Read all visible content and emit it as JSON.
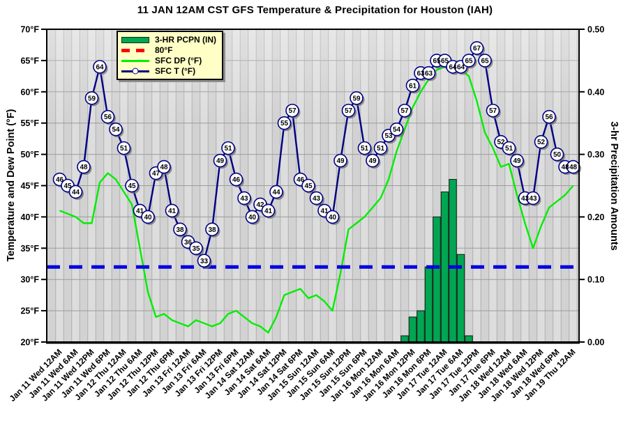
{
  "chart_data": {
    "type": "line",
    "subtype": "GFS meteogram: 3-hourly temperature/dew point lines plus precipitation bars",
    "title": "11 JAN 12AM CST GFS Temperature & Precipitation for Houston (IAH)",
    "ylabel_left": "Temperature and Dew Point (°F)",
    "ylabel_right": "3-hr Precipitation Amounts",
    "ylim_left_f": [
      20,
      70
    ],
    "ylim_right_in": [
      0.0,
      0.5
    ],
    "y_left_ticks": [
      "70°F",
      "65°F",
      "60°F",
      "55°F",
      "50°F",
      "45°F",
      "40°F",
      "35°F",
      "30°F",
      "25°F",
      "20°F"
    ],
    "y_right_ticks": [
      "0.50",
      "0.40",
      "0.30",
      "0.20",
      "0.10",
      "0.00"
    ],
    "x_interval_hours": 3,
    "x_tick_labels": [
      "Jan 11 Wed 12AM",
      "Jan 11 Wed 6AM",
      "Jan 11 Wed 12PM",
      "Jan 11 Wed 6PM",
      "Jan 12 Thu 12AM",
      "Jan 12 Thu 6AM",
      "Jan 12 Thu 12PM",
      "Jan 12 Thu 6PM",
      "Jan 13 Fri 12AM",
      "Jan 13 Fri 6AM",
      "Jan 13 Fri 12PM",
      "Jan 13 Fri 6PM",
      "Jan 14 Sat 12AM",
      "Jan 14 Sat 6AM",
      "Jan 14 Sat 12PM",
      "Jan 14 Sat 6PM",
      "Jan 15 Sun 12AM",
      "Jan 15 Sun 6AM",
      "Jan 15 Sun 12PM",
      "Jan 15 Sun 6PM",
      "Jan 16 Mon 12AM",
      "Jan 16 Mon 6AM",
      "Jan 16 Mon 12PM",
      "Jan 16 Mon 6PM",
      "Jan 17 Tue 12AM",
      "Jan 17 Tue 6AM",
      "Jan 17 Tue 12PM",
      "Jan 17 Tue 6PM",
      "Jan 18 Wed 12AM",
      "Jan 18 Wed 6AM",
      "Jan 18 Wed 12PM",
      "Jan 18 Wed 6PM",
      "Jan 19 Thu 12AM"
    ],
    "freezing_reference_line": {
      "drawn_at_f": 32,
      "color": "#0000E0",
      "style": "thick dashed"
    },
    "series": [
      {
        "name": "SFC T (°F)",
        "type": "line",
        "axis": "left",
        "color": "#000082",
        "marker": "white circle with temperature value label",
        "values": [
          46,
          45,
          44,
          48,
          59,
          64,
          56,
          54,
          51,
          45,
          41,
          40,
          47,
          48,
          41,
          38,
          36,
          35,
          33,
          38,
          49,
          51,
          46,
          43,
          40,
          42,
          41,
          44,
          55,
          57,
          46,
          45,
          43,
          41,
          40,
          49,
          57,
          59,
          51,
          49,
          51,
          53,
          54,
          57,
          61,
          63,
          63,
          65,
          65,
          64,
          64,
          65,
          67,
          65,
          57,
          52,
          51,
          49,
          43,
          43,
          52,
          56,
          50,
          48,
          48
        ]
      },
      {
        "name": "SFC DP (°F)",
        "type": "line",
        "axis": "left",
        "color": "#00EE00",
        "marker": "none",
        "values": [
          41,
          40.5,
          40,
          39,
          39,
          45.5,
          47,
          46,
          44,
          42,
          35,
          28,
          24,
          24.5,
          23.5,
          23,
          22.5,
          23.5,
          23,
          22.5,
          23,
          24.5,
          25,
          24,
          23,
          22.5,
          21.5,
          24,
          27.5,
          28,
          28.5,
          27,
          27.5,
          26.5,
          25,
          31,
          38,
          39,
          40,
          41.5,
          43,
          46,
          50.5,
          54,
          57.5,
          60,
          62,
          63.5,
          64,
          64,
          63.5,
          62.5,
          58.5,
          53.5,
          51,
          48,
          48.5,
          43.5,
          39,
          35,
          38.5,
          41.5,
          42.5,
          43.5,
          45
        ]
      },
      {
        "name": "3-HR PCPN (IN)",
        "type": "bar",
        "axis": "right",
        "color": "#00A651",
        "values": [
          0,
          0,
          0,
          0,
          0,
          0,
          0,
          0,
          0,
          0,
          0,
          0,
          0,
          0,
          0,
          0,
          0,
          0,
          0,
          0,
          0,
          0,
          0,
          0,
          0,
          0,
          0,
          0,
          0,
          0,
          0,
          0,
          0,
          0,
          0,
          0,
          0,
          0,
          0,
          0,
          0,
          0,
          0,
          0.01,
          0.04,
          0.05,
          0.12,
          0.2,
          0.24,
          0.26,
          0.14,
          0.01,
          0,
          0,
          0,
          0,
          0,
          0,
          0,
          0,
          0,
          0,
          0,
          0,
          0
        ]
      }
    ],
    "legend": {
      "position": "top-left",
      "background": "#FFFFC6",
      "items": [
        {
          "label": "3-HR PCPN  (IN)",
          "swatch": "green-filled-bar",
          "color": "#00A651"
        },
        {
          "label": "80°F",
          "swatch": "red-dashed-line",
          "color": "#FF0000"
        },
        {
          "label": "SFC DP (°F)",
          "swatch": "green-line",
          "color": "#00EE00"
        },
        {
          "label": "SFC T (°F)",
          "swatch": "navy-line-with-circle-marker",
          "color": "#000082"
        }
      ]
    },
    "grid": "gray vertical 3-hour stripes and 5°F horizontal lines",
    "plot_background": "#D6D6D6"
  }
}
